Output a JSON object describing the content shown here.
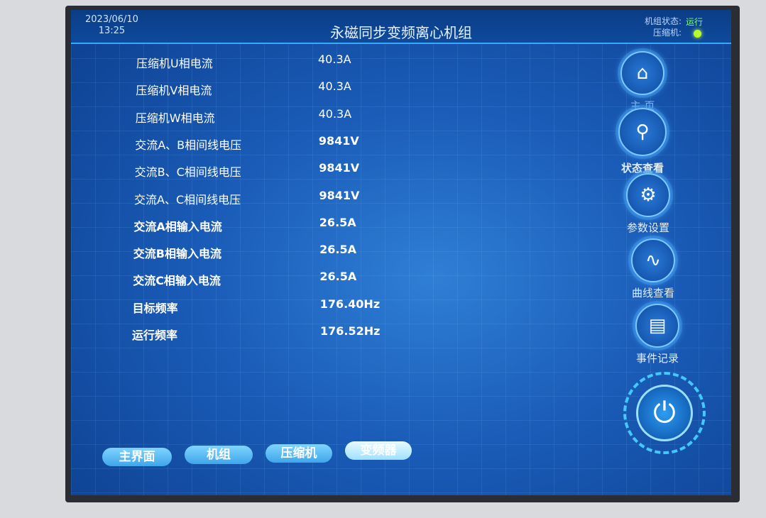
{
  "header": {
    "date": "2023/06/10",
    "time": "13:25",
    "title": "永磁同步变频离心机组",
    "unit_status_label": "机组状态:",
    "unit_status_value": "运行",
    "compressor_label": "压缩机:",
    "compressor_led_color": "#b6ff2a"
  },
  "rows": [
    {
      "label": "压缩机U相电流",
      "value": "40.3A"
    },
    {
      "label": "压缩机V相电流",
      "value": "40.3A"
    },
    {
      "label": "压缩机W相电流",
      "value": "40.3A"
    },
    {
      "label": "交流A、B相间线电压",
      "value": "9841V"
    },
    {
      "label": "交流B、C相间线电压",
      "value": "9841V"
    },
    {
      "label": "交流A、C相间线电压",
      "value": "9841V"
    },
    {
      "label": "交流A相输入电流",
      "value": "26.5A"
    },
    {
      "label": "交流B相输入电流",
      "value": "26.5A"
    },
    {
      "label": "交流C相输入电流",
      "value": "26.5A"
    },
    {
      "label": "目标频率",
      "value": "176.40Hz"
    },
    {
      "label": "运行频率",
      "value": "176.52Hz"
    }
  ],
  "nav": [
    {
      "label": "主 页",
      "icon": "home-icon"
    },
    {
      "label": "状态查看",
      "icon": "search-icon"
    },
    {
      "label": "参数设置",
      "icon": "gear-icon"
    },
    {
      "label": "曲线查看",
      "icon": "waveform-icon"
    },
    {
      "label": "事件记录",
      "icon": "document-icon"
    }
  ],
  "bottom_tabs": [
    "主界面",
    "机组",
    "压缩机",
    "变频器"
  ]
}
